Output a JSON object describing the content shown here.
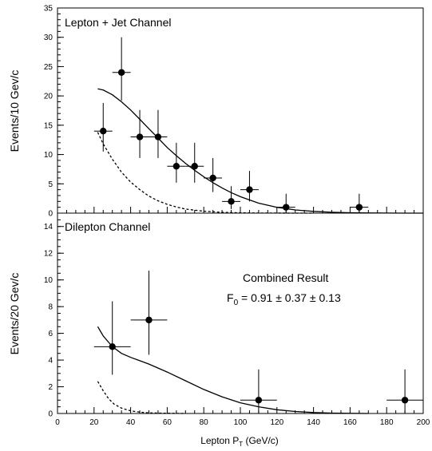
{
  "chart_data": [
    {
      "type": "scatter",
      "title": "Lepton + Jet Channel",
      "ylabel": "Events/10 Gev/c",
      "xlim": [
        0,
        200
      ],
      "ylim": [
        0,
        35
      ],
      "yticks": [
        0,
        5,
        10,
        15,
        20,
        25,
        30,
        35
      ],
      "points": [
        {
          "x": 25,
          "y": 14,
          "xerr": 5,
          "yerr_low": 3.5,
          "yerr_high": 4.8
        },
        {
          "x": 35,
          "y": 24,
          "xerr": 5,
          "yerr_low": 4.8,
          "yerr_high": 6
        },
        {
          "x": 45,
          "y": 13,
          "xerr": 5,
          "yerr_low": 3.6,
          "yerr_high": 4.6
        },
        {
          "x": 55,
          "y": 13,
          "xerr": 5,
          "yerr_low": 3.6,
          "yerr_high": 4.6
        },
        {
          "x": 65,
          "y": 8,
          "xerr": 5,
          "yerr_low": 2.8,
          "yerr_high": 4
        },
        {
          "x": 75,
          "y": 8,
          "xerr": 5,
          "yerr_low": 2.8,
          "yerr_high": 4
        },
        {
          "x": 85,
          "y": 6,
          "xerr": 5,
          "yerr_low": 2.4,
          "yerr_high": 3.4
        },
        {
          "x": 95,
          "y": 2,
          "xerr": 5,
          "yerr_low": 1.3,
          "yerr_high": 2.6
        },
        {
          "x": 105,
          "y": 4,
          "xerr": 5,
          "yerr_low": 2,
          "yerr_high": 3.2
        },
        {
          "x": 125,
          "y": 1,
          "xerr": 5,
          "yerr_low": 1,
          "yerr_high": 2.3
        },
        {
          "x": 165,
          "y": 1,
          "xerr": 5,
          "yerr_low": 1,
          "yerr_high": 2.3
        }
      ],
      "curves": [
        {
          "style": "solid",
          "x": [
            22,
            25,
            30,
            35,
            40,
            45,
            50,
            55,
            60,
            65,
            70,
            75,
            80,
            85,
            90,
            95,
            100,
            110,
            120,
            130,
            140,
            150,
            160,
            170,
            180,
            190,
            200
          ],
          "y": [
            21.2,
            21,
            20.2,
            19,
            17.6,
            16,
            14.4,
            12.8,
            11.2,
            9.8,
            8.5,
            7.3,
            6.2,
            5.2,
            4.3,
            3.5,
            2.8,
            1.7,
            1,
            0.55,
            0.3,
            0.15,
            0.07,
            0.03,
            0.01,
            0,
            0
          ]
        },
        {
          "style": "dashed",
          "x": [
            22,
            25,
            30,
            35,
            40,
            45,
            50,
            55,
            60,
            65,
            70,
            75,
            80,
            90,
            100,
            110,
            120,
            130,
            140
          ],
          "y": [
            13.8,
            11.8,
            9.2,
            7,
            5.3,
            4,
            2.9,
            2.1,
            1.5,
            1.05,
            0.7,
            0.5,
            0.33,
            0.14,
            0.05,
            0.02,
            0.01,
            0,
            0
          ]
        }
      ]
    },
    {
      "type": "scatter",
      "title": "Dilepton Channel",
      "ylabel": "Events/20 Gev/c",
      "xlabel_main": "Lepton P",
      "xlabel_sub": "T",
      "xlabel_unit": " (GeV/c)",
      "xlim": [
        0,
        200
      ],
      "ylim": [
        0,
        15
      ],
      "yticks": [
        0,
        2,
        4,
        6,
        8,
        10,
        12,
        14
      ],
      "xticks": [
        0,
        20,
        40,
        60,
        80,
        100,
        120,
        140,
        160,
        180,
        200
      ],
      "annotation_title": "Combined Result",
      "annotation_formula_main": "F",
      "annotation_formula_sub": "0",
      "annotation_formula_rest": " = 0.91 ± 0.37 ± 0.13",
      "points": [
        {
          "x": 30,
          "y": 5,
          "xerr": 10,
          "yerr_low": 2.1,
          "yerr_high": 3.4
        },
        {
          "x": 50,
          "y": 7,
          "xerr": 10,
          "yerr_low": 2.6,
          "yerr_high": 3.7
        },
        {
          "x": 110,
          "y": 1,
          "xerr": 10,
          "yerr_low": 1,
          "yerr_high": 2.3
        },
        {
          "x": 190,
          "y": 1,
          "xerr": 10,
          "yerr_low": 1,
          "yerr_high": 2.3
        }
      ],
      "curves": [
        {
          "style": "solid",
          "x": [
            22,
            25,
            30,
            35,
            40,
            45,
            50,
            55,
            60,
            70,
            80,
            90,
            100,
            110,
            120,
            130,
            140,
            150,
            160,
            170
          ],
          "y": [
            6.5,
            5.8,
            5,
            4.5,
            4.2,
            3.95,
            3.7,
            3.4,
            3.1,
            2.45,
            1.8,
            1.25,
            0.8,
            0.5,
            0.28,
            0.15,
            0.07,
            0.03,
            0.01,
            0
          ]
        },
        {
          "style": "dashed",
          "x": [
            22,
            25,
            28,
            31,
            35,
            40,
            45,
            50,
            60,
            70
          ],
          "y": [
            2.4,
            1.7,
            1.1,
            0.7,
            0.4,
            0.2,
            0.1,
            0.05,
            0.02,
            0
          ]
        }
      ]
    }
  ]
}
